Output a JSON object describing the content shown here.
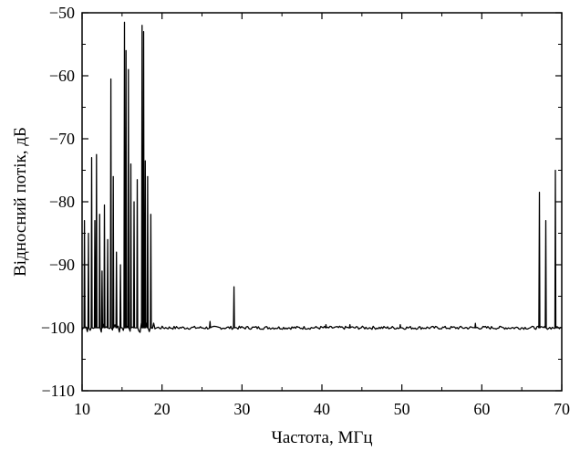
{
  "chart_data": {
    "type": "line",
    "title": "",
    "xlabel": "Частота, МГц",
    "ylabel": "Відносний потік, дБ",
    "xlim": [
      10,
      70
    ],
    "ylim": [
      -110,
      -50
    ],
    "xticks": [
      10,
      20,
      30,
      40,
      50,
      60,
      70
    ],
    "yticks": [
      -110,
      -100,
      -90,
      -80,
      -70,
      -60,
      -50
    ],
    "grid": false,
    "legend": "none",
    "baseline": -100,
    "line_color": "#000000",
    "series": [
      {
        "peaks": [
          [
            10.3,
            -83
          ],
          [
            10.8,
            -85
          ],
          [
            11.2,
            -73
          ],
          [
            11.6,
            -83
          ],
          [
            11.8,
            -72.5
          ],
          [
            12.2,
            -82
          ],
          [
            12.5,
            -91
          ],
          [
            12.8,
            -80.5
          ],
          [
            13.2,
            -86
          ],
          [
            13.6,
            -60.5
          ],
          [
            13.9,
            -76
          ],
          [
            14.3,
            -88
          ],
          [
            14.8,
            -90
          ],
          [
            15.3,
            -51.5
          ],
          [
            15.5,
            -56
          ],
          [
            15.8,
            -59
          ],
          [
            16.1,
            -74
          ],
          [
            16.5,
            -80
          ],
          [
            16.9,
            -76.5
          ],
          [
            17.5,
            -52
          ],
          [
            17.7,
            -53
          ],
          [
            17.9,
            -73.5
          ],
          [
            18.2,
            -76
          ],
          [
            18.6,
            -82
          ],
          [
            26.0,
            -99
          ],
          [
            29.0,
            -93.5
          ],
          [
            40.5,
            -99.5
          ],
          [
            43.5,
            -99.5
          ],
          [
            49.8,
            -99.5
          ],
          [
            59.2,
            -99.3
          ],
          [
            67.2,
            -78.5
          ],
          [
            68.0,
            -83
          ],
          [
            69.2,
            -75
          ]
        ]
      }
    ]
  }
}
